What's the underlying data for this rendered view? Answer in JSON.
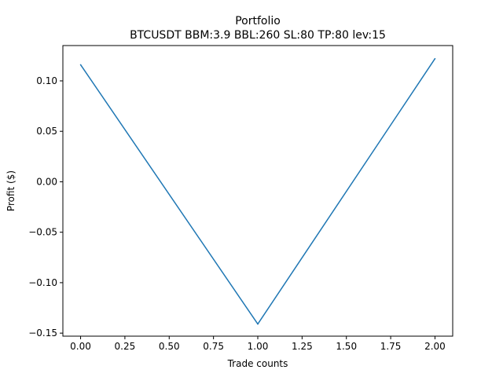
{
  "chart_data": {
    "type": "line",
    "title": "Portfolio",
    "subtitle": "BTCUSDT BBM:3.9 BBL:260 SL:80 TP:80 lev:15",
    "xlabel": "Trade counts",
    "ylabel": "Profit ($)",
    "xlim": [
      -0.1,
      2.1
    ],
    "ylim": [
      -0.153,
      0.135
    ],
    "x_ticks": [
      0.0,
      0.25,
      0.5,
      0.75,
      1.0,
      1.25,
      1.5,
      1.75,
      2.0
    ],
    "x_tick_labels": [
      "0.00",
      "0.25",
      "0.50",
      "0.75",
      "1.00",
      "1.25",
      "1.50",
      "1.75",
      "2.00"
    ],
    "y_ticks": [
      -0.15,
      -0.1,
      -0.05,
      0.0,
      0.05,
      0.1
    ],
    "y_tick_labels": [
      "−0.15",
      "−0.10",
      "−0.05",
      "0.00",
      "0.05",
      "0.10"
    ],
    "grid": false,
    "legend": "none",
    "series": [
      {
        "color": "#1f77b4",
        "x": [
          0,
          1,
          2
        ],
        "y": [
          0.116,
          -0.141,
          0.122
        ]
      }
    ]
  }
}
